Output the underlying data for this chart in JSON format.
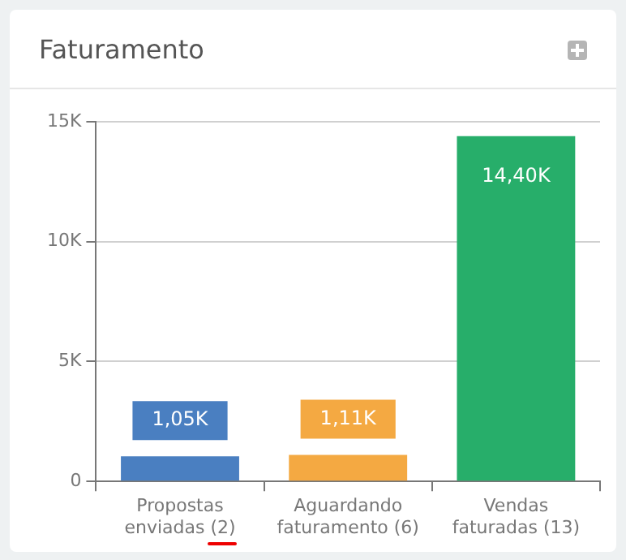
{
  "chart_data": {
    "type": "bar",
    "title": "Faturamento",
    "categories": [
      "Propostas enviadas (2)",
      "Aguardando faturamento (6)",
      "Vendas faturadas (13)"
    ],
    "values": [
      1050,
      1110,
      14400
    ],
    "colors": [
      "#4a7fc1",
      "#f4a942",
      "#27ae6a"
    ],
    "value_labels": [
      "1,05K",
      "1,11K",
      "14,40K"
    ],
    "ylim": [
      0,
      15000
    ],
    "yticks": [
      0,
      {
        "value": 5000,
        "label": "5K"
      },
      {
        "value": 10000,
        "label": "10K"
      },
      {
        "value": 15000,
        "label": "15K"
      }
    ],
    "grid": "y",
    "legend": false
  }
}
